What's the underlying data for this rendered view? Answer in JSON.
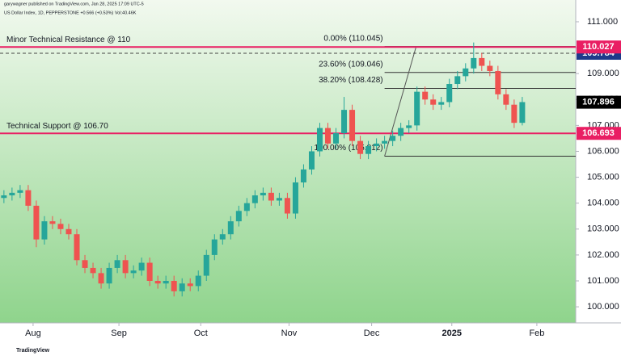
{
  "header": {
    "publisher": "garywagner published on TradingView.com, Jan 28, 2025 17:09 UTC-5",
    "symbol": "US Dollar Index, 1D, PEPPERSTONE  +0.566 (+0.53%)  Vol:40.46K"
  },
  "footer": {
    "brand": "TradingView"
  },
  "chart_data": {
    "type": "candlestick",
    "x": [
      0,
      1,
      2,
      3,
      4,
      5,
      6,
      7,
      8,
      9,
      10,
      11,
      12,
      13,
      14,
      15,
      16,
      17,
      18,
      19,
      20,
      21,
      22,
      23,
      24,
      25,
      26,
      27,
      28,
      29,
      30,
      31,
      32,
      33,
      34,
      35,
      36,
      37,
      38,
      39,
      40,
      41,
      42,
      43,
      44,
      45,
      46,
      47,
      48,
      49,
      50,
      51,
      52,
      53,
      54,
      55,
      56,
      57,
      58,
      59,
      60,
      61,
      62,
      63,
      64
    ],
    "open": [
      104.2,
      104.3,
      104.4,
      104.5,
      103.9,
      102.6,
      103.3,
      103.2,
      103.0,
      102.8,
      101.8,
      101.5,
      101.3,
      100.9,
      101.5,
      101.8,
      101.3,
      101.4,
      101.7,
      101.0,
      100.9,
      101.0,
      100.6,
      100.9,
      100.8,
      101.2,
      102.0,
      102.6,
      102.8,
      103.3,
      103.7,
      104.0,
      104.3,
      104.4,
      104.1,
      104.2,
      103.6,
      104.8,
      105.3,
      106.0,
      106.9,
      106.3,
      106.7,
      107.6,
      106.4,
      105.9,
      106.2,
      106.3,
      106.4,
      106.6,
      106.9,
      107.0,
      108.3,
      108.0,
      107.8,
      107.9,
      108.6,
      108.9,
      109.2,
      109.6,
      109.3,
      109.1,
      108.2,
      107.8,
      107.1
    ],
    "high": [
      104.5,
      104.6,
      104.7,
      104.7,
      104.1,
      103.5,
      103.5,
      103.4,
      103.2,
      103.0,
      102.0,
      101.7,
      101.5,
      101.7,
      102.0,
      102.0,
      101.6,
      101.9,
      101.9,
      101.2,
      101.2,
      101.2,
      101.1,
      101.1,
      101.4,
      102.2,
      102.8,
      103.0,
      103.5,
      103.9,
      104.2,
      104.5,
      104.6,
      104.6,
      104.4,
      104.4,
      105.0,
      105.5,
      106.2,
      107.1,
      107.1,
      106.9,
      108.1,
      107.8,
      106.6,
      106.4,
      106.5,
      106.6,
      106.8,
      107.1,
      107.2,
      108.5,
      108.5,
      108.2,
      108.1,
      108.8,
      109.1,
      109.4,
      110.2,
      109.8,
      109.5,
      109.3,
      108.4,
      108.0,
      108.1
    ],
    "low": [
      104.0,
      104.1,
      104.2,
      103.7,
      102.3,
      102.4,
      103.0,
      102.8,
      102.6,
      101.6,
      101.3,
      101.1,
      100.7,
      100.7,
      101.3,
      101.1,
      101.1,
      101.2,
      100.8,
      100.7,
      100.7,
      100.4,
      100.4,
      100.6,
      100.6,
      101.0,
      101.8,
      102.4,
      102.6,
      103.1,
      103.5,
      103.8,
      104.1,
      103.9,
      103.9,
      103.4,
      103.4,
      104.6,
      105.1,
      105.8,
      106.1,
      106.1,
      106.5,
      106.2,
      105.7,
      105.7,
      106.0,
      106.1,
      106.2,
      106.4,
      106.7,
      106.8,
      107.8,
      107.6,
      107.6,
      107.7,
      108.4,
      108.7,
      109.0,
      109.1,
      108.9,
      108.0,
      107.6,
      106.9,
      107.0
    ],
    "close": [
      104.3,
      104.4,
      104.5,
      103.9,
      102.6,
      103.3,
      103.2,
      103.0,
      102.8,
      101.8,
      101.5,
      101.3,
      100.9,
      101.5,
      101.8,
      101.3,
      101.4,
      101.7,
      101.0,
      100.9,
      101.0,
      100.6,
      100.9,
      100.8,
      101.2,
      102.0,
      102.6,
      102.8,
      103.3,
      103.7,
      104.0,
      104.3,
      104.4,
      104.1,
      104.2,
      103.6,
      104.8,
      105.3,
      106.0,
      106.9,
      106.3,
      106.7,
      107.6,
      106.4,
      105.9,
      106.2,
      106.3,
      106.4,
      106.6,
      106.9,
      107.0,
      108.3,
      108.0,
      107.8,
      107.9,
      108.6,
      108.9,
      109.2,
      109.6,
      109.3,
      109.1,
      108.2,
      107.8,
      107.1,
      107.9
    ],
    "up_color": "#26a69a",
    "down_color": "#ef5350",
    "xlim": [
      -0.485,
      70.6
    ],
    "xticks": [
      {
        "value": 3.6,
        "label": "Aug"
      },
      {
        "value": 14.2,
        "label": "Sep"
      },
      {
        "value": 24.3,
        "label": "Oct"
      },
      {
        "value": 35.2,
        "label": "Nov"
      },
      {
        "value": 45.4,
        "label": "Dec"
      },
      {
        "value": 55.3,
        "label": "2025"
      },
      {
        "value": 65.8,
        "label": "Feb"
      }
    ],
    "ylim": [
      99.38,
      111.84
    ],
    "yticks": [
      {
        "value": 100,
        "label": "100.000"
      },
      {
        "value": 101,
        "label": "101.000"
      },
      {
        "value": 102,
        "label": "102.000"
      },
      {
        "value": 103,
        "label": "103.000"
      },
      {
        "value": 104,
        "label": "104.000"
      },
      {
        "value": 105,
        "label": "105.000"
      },
      {
        "value": 106,
        "label": "106.000"
      },
      {
        "value": 107,
        "label": "107.000"
      },
      {
        "value": 108,
        "label": "108.000"
      },
      {
        "value": 109,
        "label": "109.000"
      },
      {
        "value": 110,
        "label": "110.000"
      },
      {
        "value": 111,
        "label": "111.000"
      }
    ],
    "hlines": [
      {
        "name": "Minor Technical Resistance @ 110",
        "value": 110.027,
        "color": "#e91e63"
      },
      {
        "name": "Technical Support @ 106.70",
        "value": 106.693,
        "color": "#e91e63"
      }
    ],
    "dashed_line": {
      "value": 109.784,
      "color": "#1e3a8a"
    },
    "last_price": {
      "value": 107.896,
      "color": "#000000"
    },
    "fib_levels": [
      {
        "label": "0.00% (110.045)",
        "value": 110.045
      },
      {
        "label": "23.60% (109.046)",
        "value": 109.046
      },
      {
        "label": "38.20% (108.428)",
        "value": 108.428
      },
      {
        "label": "100.00% (105.812)",
        "value": 105.812
      }
    ],
    "trend_line": {
      "x": [
        47,
        50.9
      ],
      "y": [
        105.812,
        110.045
      ]
    }
  }
}
